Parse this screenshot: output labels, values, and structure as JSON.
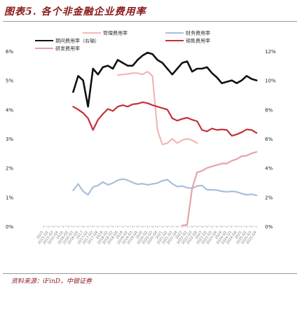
{
  "header": {
    "title": "图表5. 各个非金融企业费用率",
    "source": "资料来源：iFinD，中银证券"
  },
  "chart_data": {
    "type": "line",
    "title": "",
    "x": [
      "2015",
      "2015-Q2",
      "2015-Q3",
      "2015-Q4",
      "2016",
      "2016-Q2",
      "2016-Q3",
      "2016-Q4",
      "2017",
      "2017-Q2",
      "2017-Q3",
      "2017-Q4",
      "2018",
      "2018-Q2",
      "2018-Q3",
      "2018-Q4",
      "2019",
      "2019-Q2",
      "2019-Q3",
      "2019-Q4",
      "2020",
      "2020-Q2",
      "2020-Q3",
      "2020-Q4",
      "2021",
      "2021-Q2",
      "2021-Q3",
      "2021-Q4",
      "2022",
      "2022-Q2",
      "2022-Q3",
      "2022-Q4",
      "2023",
      "2023-Q2",
      "2023-Q3",
      "2023-Q4",
      "2024",
      "2024-Q2",
      "2024-Q3",
      "2024-Q4",
      "2025",
      "2025-Q2",
      "2025-Q3",
      "2025-Q4"
    ],
    "y_left": {
      "ticks": [
        "0%",
        "1%",
        "2%",
        "3%",
        "4%",
        "5%",
        "6%"
      ],
      "range": [
        0,
        6
      ]
    },
    "y_right": {
      "ticks": [
        "0%",
        "2%",
        "4%",
        "6%",
        "8%",
        "10%",
        "12%"
      ],
      "range": [
        0,
        12
      ]
    },
    "series": [
      {
        "name": "管理费用率",
        "axis": "left",
        "color": "#f4b6b0",
        "values": [
          null,
          null,
          null,
          null,
          null,
          null,
          null,
          null,
          null,
          null,
          null,
          null,
          null,
          null,
          null,
          5.18,
          5.2,
          5.22,
          5.25,
          5.25,
          5.2,
          5.3,
          5.15,
          3.3,
          2.8,
          2.85,
          3.0,
          2.85,
          2.95,
          3.0,
          2.95,
          2.85,
          null,
          null,
          null,
          null,
          null,
          null,
          null,
          null,
          null,
          null,
          null,
          null
        ]
      },
      {
        "name": "财务费用率",
        "axis": "left",
        "color": "#a8bfdc",
        "values": [
          null,
          null,
          null,
          null,
          null,
          null,
          1.23,
          1.45,
          1.2,
          1.08,
          1.35,
          1.4,
          1.52,
          1.42,
          1.48,
          1.58,
          1.62,
          1.58,
          1.5,
          1.44,
          1.46,
          1.42,
          1.45,
          1.48,
          1.56,
          1.6,
          1.46,
          1.36,
          1.38,
          1.32,
          1.3,
          1.38,
          1.4,
          1.25,
          1.25,
          1.24,
          1.2,
          1.18,
          1.2,
          1.18,
          1.12,
          1.08,
          1.1,
          1.06
        ]
      },
      {
        "name": "期间费用率（右轴）",
        "axis": "right",
        "color": "#111111",
        "values": [
          null,
          null,
          null,
          null,
          null,
          null,
          9.2,
          10.3,
          10.0,
          8.2,
          10.8,
          10.4,
          10.9,
          11.0,
          10.8,
          11.4,
          11.2,
          11.0,
          11.0,
          11.4,
          11.7,
          11.9,
          11.8,
          11.4,
          11.2,
          10.8,
          10.4,
          10.8,
          11.2,
          11.3,
          10.6,
          10.8,
          10.8,
          10.9,
          10.5,
          10.2,
          9.8,
          9.9,
          10.0,
          9.8,
          10.0,
          10.3,
          10.1,
          10.0
        ]
      },
      {
        "name": "销售费用率",
        "axis": "left",
        "color": "#c4313a",
        "values": [
          null,
          null,
          null,
          null,
          null,
          null,
          4.1,
          4.0,
          3.88,
          3.7,
          3.3,
          3.65,
          3.85,
          4.02,
          3.95,
          4.1,
          4.15,
          4.1,
          4.18,
          4.2,
          4.25,
          4.22,
          4.15,
          4.1,
          4.05,
          4.0,
          3.7,
          3.62,
          3.68,
          3.72,
          3.65,
          3.6,
          3.3,
          3.25,
          3.35,
          3.3,
          3.32,
          3.3,
          3.1,
          3.15,
          3.22,
          3.32,
          3.3,
          3.2
        ]
      },
      {
        "name": "研发费用率",
        "axis": "left",
        "color": "#e5a3a8",
        "values": [
          null,
          null,
          null,
          null,
          null,
          null,
          null,
          null,
          null,
          null,
          null,
          null,
          null,
          null,
          null,
          null,
          null,
          null,
          null,
          null,
          null,
          null,
          null,
          null,
          null,
          null,
          null,
          null,
          0.03,
          0.05,
          1.3,
          1.85,
          1.9,
          2.0,
          2.05,
          2.1,
          2.15,
          2.15,
          2.25,
          2.3,
          2.4,
          2.42,
          2.5,
          2.55
        ]
      }
    ],
    "legend_position": "top-center",
    "grid": false
  }
}
